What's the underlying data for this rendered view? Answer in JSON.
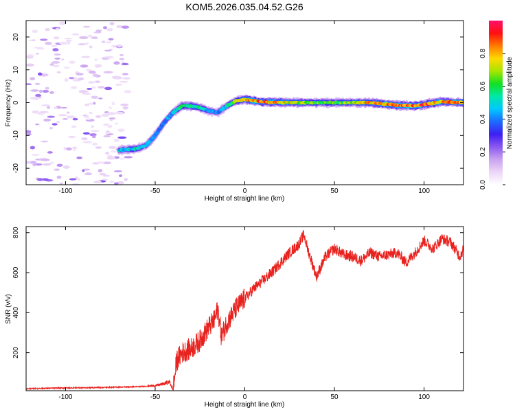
{
  "figure_title": "KOM5.2026.035.04.52.G26",
  "colors": {
    "line": "#e8231f",
    "colormap": [
      "#ffffff",
      "#ecd6f7",
      "#c9a3f0",
      "#8b58f0",
      "#3d1ff2",
      "#1c6bff",
      "#00c8ff",
      "#00e8a8",
      "#12e022",
      "#a8e600",
      "#ffd800",
      "#ff7a00",
      "#ff1010",
      "#ff0f6a"
    ]
  },
  "chart_data": [
    {
      "type": "heatmap",
      "title": "",
      "xlabel": "Height of straight line (km)",
      "ylabel": "Frequency (Hz)",
      "xlim": [
        -122,
        122
      ],
      "ylim": [
        -25,
        25
      ],
      "xticks": [
        -100,
        -50,
        0,
        50,
        100
      ],
      "xtick_labels": [
        "-100",
        "-50",
        "0",
        "50",
        "100"
      ],
      "yticks": [
        -20,
        -10,
        0,
        10,
        20
      ],
      "ytick_labels": [
        "-20",
        "-10",
        "0",
        "10",
        "20"
      ],
      "ridge": {
        "x": [
          -70,
          -60,
          -55,
          -50,
          -45,
          -40,
          -35,
          -30,
          -25,
          -20,
          -15,
          -10,
          -5,
          0,
          10,
          30,
          50,
          70,
          85,
          95,
          110,
          122
        ],
        "freq": [
          -14.5,
          -14,
          -13,
          -10,
          -6,
          -3,
          -1,
          -1,
          -1.5,
          -2.5,
          -3,
          -1,
          0.5,
          1,
          0.2,
          0,
          0,
          0,
          -0.8,
          -1,
          0.3,
          0
        ],
        "amplitude": [
          0.45,
          0.5,
          0.45,
          0.4,
          0.42,
          0.45,
          0.55,
          0.6,
          0.55,
          0.45,
          0.4,
          0.5,
          0.65,
          0.75,
          0.85,
          0.7,
          0.6,
          0.8,
          0.85,
          0.9,
          0.8,
          0.85
        ]
      },
      "noise_region_x": [
        -122,
        -65
      ],
      "colorbar": {
        "label": "Normalized spectral amplitude",
        "range": [
          0,
          1
        ],
        "ticks": [
          0.0,
          0.2,
          0.4,
          0.6,
          0.8
        ],
        "tick_labels": [
          "0.0",
          "0.2",
          "0.4",
          "0.6",
          "0.8"
        ]
      }
    },
    {
      "type": "line",
      "title": "",
      "xlabel": "Height of straight line (km)",
      "ylabel": "SNR (v/v)",
      "xlim": [
        -122,
        122
      ],
      "ylim": [
        10,
        830
      ],
      "xticks": [
        -100,
        -50,
        0,
        50,
        100
      ],
      "xtick_labels": [
        "-100",
        "-50",
        "0",
        "50",
        "100"
      ],
      "yticks": [
        200,
        400,
        600,
        800
      ],
      "ytick_labels": [
        "200",
        "400",
        "600",
        "800"
      ],
      "series": [
        {
          "name": "SNR",
          "x": [
            -122,
            -110,
            -100,
            -90,
            -80,
            -70,
            -60,
            -50,
            -45,
            -42,
            -40,
            -38,
            -35,
            -30,
            -25,
            -20,
            -17,
            -15,
            -13,
            -10,
            -5,
            0,
            5,
            10,
            15,
            20,
            25,
            30,
            33,
            35,
            40,
            45,
            50,
            55,
            60,
            65,
            70,
            75,
            80,
            85,
            90,
            95,
            100,
            105,
            110,
            115,
            120,
            122
          ],
          "y": [
            20,
            22,
            24,
            25,
            26,
            28,
            30,
            35,
            45,
            55,
            15,
            160,
            200,
            220,
            260,
            330,
            360,
            420,
            280,
            350,
            420,
            470,
            520,
            560,
            600,
            650,
            700,
            740,
            790,
            720,
            580,
            680,
            720,
            690,
            680,
            660,
            700,
            680,
            690,
            700,
            650,
            700,
            760,
            720,
            770,
            750,
            680,
            720
          ]
        }
      ]
    }
  ]
}
